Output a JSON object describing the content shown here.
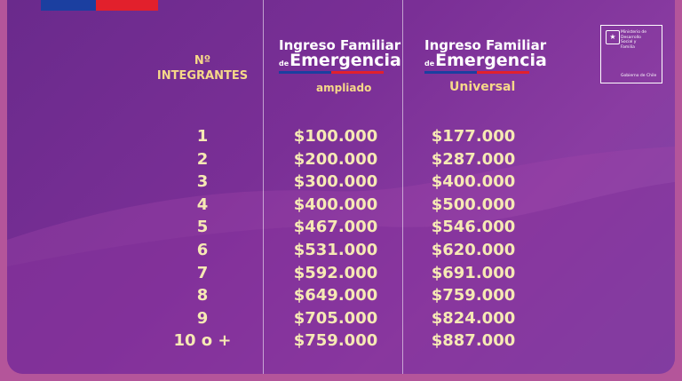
{
  "header": {
    "members_label_line1": "Nº",
    "members_label_line2": "INTEGRANTES"
  },
  "columns": [
    {
      "logo_line1": "Ingreso Familiar",
      "logo_de": "de",
      "logo_line2": "Emergencia",
      "subtitle": "ampliado"
    },
    {
      "logo_line1": "Ingreso Familiar",
      "logo_de": "de",
      "logo_line2": "Emergencia",
      "subtitle": "Universal"
    }
  ],
  "rows": [
    {
      "members": "1",
      "ampliado": "$100.000",
      "universal": "$177.000"
    },
    {
      "members": "2",
      "ampliado": "$200.000",
      "universal": "$287.000"
    },
    {
      "members": "3",
      "ampliado": "$300.000",
      "universal": "$400.000"
    },
    {
      "members": "4",
      "ampliado": "$400.000",
      "universal": "$500.000"
    },
    {
      "members": "5",
      "ampliado": "$467.000",
      "universal": "$546.000"
    },
    {
      "members": "6",
      "ampliado": "$531.000",
      "universal": "$620.000"
    },
    {
      "members": "7",
      "ampliado": "$592.000",
      "universal": "$691.000"
    },
    {
      "members": "8",
      "ampliado": "$649.000",
      "universal": "$759.000"
    },
    {
      "members": "9",
      "ampliado": "$705.000",
      "universal": "$824.000"
    },
    {
      "members": "10 o +",
      "ampliado": "$759.000",
      "universal": "$887.000"
    }
  ],
  "ministry": {
    "line1": "Ministerio de",
    "line2": "Desarrollo",
    "line3": "Social y",
    "line4": "Familia",
    "government": "Gobierno de Chile"
  },
  "colors": {
    "background": "#7a2f96",
    "accent_text": "#f6d889",
    "value_text": "#f6e9b4",
    "flag_blue": "#1b3fa0",
    "flag_red": "#e2202c"
  }
}
